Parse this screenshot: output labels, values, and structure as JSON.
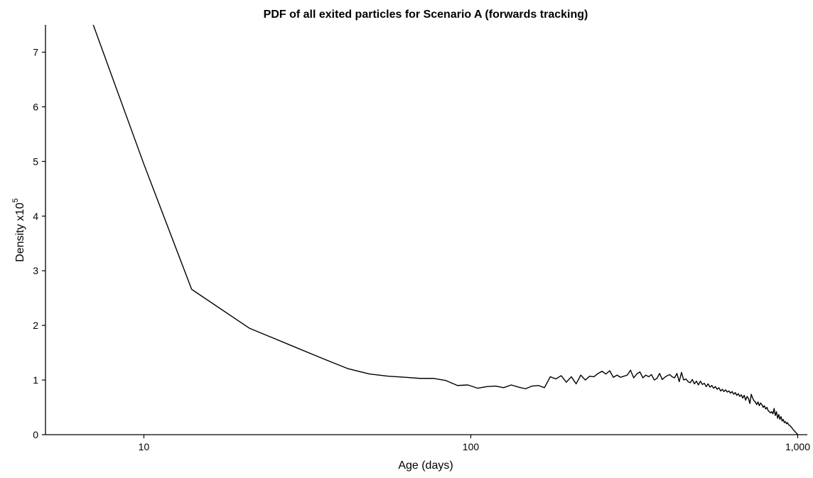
{
  "chart_data": {
    "type": "line",
    "title": "PDF of all exited particles for Scenario A (forwards tracking)",
    "xlabel": "Age (days)",
    "ylabel": "Density  x10",
    "ylabel_superscript": "5",
    "x_scale": "log",
    "xlim": [
      5,
      1070
    ],
    "ylim": [
      0,
      7.5
    ],
    "x_ticks": [
      {
        "value": 10,
        "label": "10"
      },
      {
        "value": 100,
        "label": "100"
      },
      {
        "value": 1000,
        "label": "1,000"
      }
    ],
    "y_ticks": [
      {
        "value": 0,
        "label": "0"
      },
      {
        "value": 1,
        "label": "1"
      },
      {
        "value": 2,
        "label": "2"
      },
      {
        "value": 3,
        "label": "3"
      },
      {
        "value": 4,
        "label": "4"
      },
      {
        "value": 5,
        "label": "5"
      },
      {
        "value": 6,
        "label": "6"
      },
      {
        "value": 7,
        "label": "7"
      }
    ],
    "grid": false,
    "series": [
      {
        "color": "#000000",
        "points": [
          [
            7,
            7.5
          ],
          [
            10,
            4.95
          ],
          [
            14,
            2.66
          ],
          [
            21,
            1.95
          ],
          [
            28,
            1.64
          ],
          [
            35,
            1.4
          ],
          [
            42,
            1.21
          ],
          [
            49,
            1.11
          ],
          [
            56,
            1.07
          ],
          [
            63,
            1.05
          ],
          [
            70,
            1.03
          ],
          [
            77,
            1.03
          ],
          [
            84,
            0.99
          ],
          [
            91,
            0.9
          ],
          [
            98,
            0.91
          ],
          [
            105,
            0.85
          ],
          [
            112,
            0.88
          ],
          [
            119,
            0.89
          ],
          [
            126,
            0.86
          ],
          [
            133,
            0.91
          ],
          [
            140,
            0.87
          ],
          [
            147,
            0.84
          ],
          [
            154,
            0.89
          ],
          [
            161,
            0.9
          ],
          [
            168,
            0.86
          ],
          [
            175,
            1.06
          ],
          [
            182,
            1.02
          ],
          [
            189,
            1.08
          ],
          [
            196,
            0.96
          ],
          [
            203,
            1.06
          ],
          [
            210,
            0.93
          ],
          [
            217,
            1.09
          ],
          [
            224,
            1.0
          ],
          [
            231,
            1.07
          ],
          [
            238,
            1.06
          ],
          [
            245,
            1.12
          ],
          [
            252,
            1.16
          ],
          [
            259,
            1.11
          ],
          [
            266,
            1.17
          ],
          [
            273,
            1.05
          ],
          [
            280,
            1.09
          ],
          [
            287,
            1.05
          ],
          [
            294,
            1.07
          ],
          [
            301,
            1.09
          ],
          [
            308,
            1.18
          ],
          [
            315,
            1.04
          ],
          [
            322,
            1.11
          ],
          [
            329,
            1.15
          ],
          [
            336,
            1.04
          ],
          [
            343,
            1.09
          ],
          [
            350,
            1.06
          ],
          [
            357,
            1.1
          ],
          [
            364,
            1.0
          ],
          [
            371,
            1.03
          ],
          [
            378,
            1.12
          ],
          [
            385,
            1.01
          ],
          [
            392,
            1.05
          ],
          [
            399,
            1.08
          ],
          [
            406,
            1.1
          ],
          [
            413,
            1.06
          ],
          [
            420,
            1.04
          ],
          [
            427,
            1.12
          ],
          [
            434,
            0.97
          ],
          [
            441,
            1.14
          ],
          [
            448,
            1.0
          ],
          [
            455,
            1.02
          ],
          [
            462,
            0.97
          ],
          [
            469,
            0.95
          ],
          [
            476,
            1.01
          ],
          [
            483,
            0.93
          ],
          [
            490,
            0.98
          ],
          [
            497,
            0.91
          ],
          [
            504,
            0.98
          ],
          [
            511,
            0.92
          ],
          [
            518,
            0.94
          ],
          [
            525,
            0.88
          ],
          [
            532,
            0.93
          ],
          [
            539,
            0.87
          ],
          [
            546,
            0.9
          ],
          [
            553,
            0.85
          ],
          [
            560,
            0.88
          ],
          [
            567,
            0.83
          ],
          [
            574,
            0.86
          ],
          [
            581,
            0.8
          ],
          [
            588,
            0.83
          ],
          [
            595,
            0.79
          ],
          [
            602,
            0.82
          ],
          [
            609,
            0.78
          ],
          [
            616,
            0.8
          ],
          [
            623,
            0.76
          ],
          [
            630,
            0.79
          ],
          [
            637,
            0.74
          ],
          [
            644,
            0.77
          ],
          [
            651,
            0.72
          ],
          [
            658,
            0.75
          ],
          [
            665,
            0.7
          ],
          [
            672,
            0.73
          ],
          [
            679,
            0.67
          ],
          [
            686,
            0.72
          ],
          [
            693,
            0.63
          ],
          [
            700,
            0.7
          ],
          [
            707,
            0.66
          ],
          [
            714,
            0.57
          ],
          [
            721,
            0.74
          ],
          [
            728,
            0.67
          ],
          [
            735,
            0.62
          ],
          [
            742,
            0.6
          ],
          [
            749,
            0.55
          ],
          [
            756,
            0.6
          ],
          [
            763,
            0.53
          ],
          [
            770,
            0.58
          ],
          [
            777,
            0.55
          ],
          [
            784,
            0.5
          ],
          [
            791,
            0.53
          ],
          [
            798,
            0.47
          ],
          [
            805,
            0.5
          ],
          [
            812,
            0.44
          ],
          [
            819,
            0.42
          ],
          [
            826,
            0.4
          ],
          [
            833,
            0.42
          ],
          [
            840,
            0.38
          ],
          [
            847,
            0.48
          ],
          [
            854,
            0.35
          ],
          [
            861,
            0.42
          ],
          [
            868,
            0.3
          ],
          [
            875,
            0.37
          ],
          [
            882,
            0.28
          ],
          [
            889,
            0.33
          ],
          [
            896,
            0.25
          ],
          [
            903,
            0.28
          ],
          [
            910,
            0.22
          ],
          [
            917,
            0.24
          ],
          [
            924,
            0.2
          ],
          [
            931,
            0.22
          ],
          [
            938,
            0.18
          ],
          [
            945,
            0.17
          ],
          [
            952,
            0.15
          ],
          [
            959,
            0.13
          ],
          [
            966,
            0.1
          ],
          [
            973,
            0.08
          ],
          [
            980,
            0.06
          ],
          [
            987,
            0.04
          ],
          [
            994,
            0.02
          ],
          [
            1001,
            0.0
          ]
        ]
      }
    ]
  }
}
